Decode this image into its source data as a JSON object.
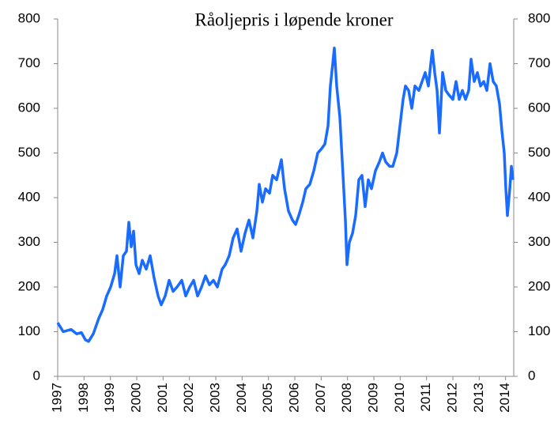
{
  "chart_data": {
    "type": "line",
    "title": "Råoljepris i løpende kroner",
    "x": [
      1997.0,
      1997.21,
      1997.51,
      1997.72,
      1997.9,
      1998.05,
      1998.17,
      1998.35,
      1998.56,
      1998.71,
      1998.86,
      1999.01,
      1999.16,
      1999.25,
      1999.37,
      1999.49,
      1999.61,
      1999.7,
      1999.79,
      1999.88,
      1999.97,
      2000.09,
      2000.21,
      2000.36,
      2000.51,
      2000.66,
      2000.81,
      2000.93,
      2001.08,
      2001.23,
      2001.38,
      2001.53,
      2001.71,
      2001.86,
      2002.01,
      2002.16,
      2002.31,
      2002.46,
      2002.61,
      2002.76,
      2002.91,
      2003.06,
      2003.24,
      2003.36,
      2003.51,
      2003.66,
      2003.81,
      2003.96,
      2004.11,
      2004.26,
      2004.41,
      2004.56,
      2004.65,
      2004.77,
      2004.89,
      2005.04,
      2005.16,
      2005.31,
      2005.49,
      2005.61,
      2005.76,
      2005.91,
      2006.03,
      2006.15,
      2006.3,
      2006.42,
      2006.57,
      2006.72,
      2006.87,
      2007.02,
      2007.14,
      2007.26,
      2007.35,
      2007.44,
      2007.5,
      2007.59,
      2007.71,
      2007.83,
      2007.92,
      2007.98,
      2008.07,
      2008.19,
      2008.31,
      2008.43,
      2008.55,
      2008.67,
      2008.79,
      2008.91,
      2009.06,
      2009.21,
      2009.33,
      2009.45,
      2009.6,
      2009.72,
      2009.87,
      2009.99,
      2010.11,
      2010.2,
      2010.32,
      2010.44,
      2010.56,
      2010.71,
      2010.83,
      2010.95,
      2011.07,
      2011.16,
      2011.22,
      2011.31,
      2011.4,
      2011.49,
      2011.61,
      2011.73,
      2011.85,
      2012.0,
      2012.12,
      2012.24,
      2012.36,
      2012.48,
      2012.6,
      2012.69,
      2012.81,
      2012.93,
      2013.05,
      2013.17,
      2013.29,
      2013.41,
      2013.53,
      2013.65,
      2013.77,
      2013.86,
      2013.95,
      2014.01,
      2014.07,
      2014.16,
      2014.22,
      2014.28
    ],
    "series": [
      {
        "color": "#1a6cff",
        "values": [
          120,
          100,
          105,
          95,
          98,
          82,
          78,
          95,
          130,
          150,
          180,
          200,
          230,
          270,
          200,
          270,
          280,
          345,
          290,
          325,
          250,
          230,
          260,
          240,
          270,
          220,
          180,
          160,
          180,
          215,
          190,
          200,
          215,
          180,
          200,
          215,
          180,
          200,
          225,
          205,
          215,
          200,
          240,
          250,
          270,
          310,
          330,
          280,
          320,
          350,
          310,
          370,
          430,
          390,
          420,
          410,
          450,
          440,
          485,
          420,
          370,
          350,
          340,
          360,
          390,
          420,
          430,
          460,
          500,
          510,
          520,
          560,
          650,
          700,
          735,
          650,
          580,
          450,
          350,
          250,
          300,
          320,
          360,
          440,
          450,
          380,
          440,
          420,
          460,
          480,
          500,
          480,
          470,
          470,
          500,
          560,
          620,
          650,
          640,
          600,
          650,
          640,
          660,
          680,
          650,
          700,
          730,
          680,
          640,
          545,
          680,
          640,
          630,
          620,
          660,
          620,
          640,
          620,
          640,
          710,
          660,
          680,
          650,
          660,
          640,
          700,
          660,
          650,
          610,
          550,
          500,
          420,
          360,
          420,
          470,
          440
        ]
      }
    ],
    "xlim": [
      1997,
      2014.31
    ],
    "xticks": [
      1997,
      1998,
      1999,
      2000,
      2001,
      2002,
      2003,
      2004,
      2005,
      2006,
      2007,
      2008,
      2009,
      2010,
      2011,
      2012,
      2013,
      2014
    ],
    "ylim": [
      0,
      800
    ],
    "yticks": [
      0,
      100,
      200,
      300,
      400,
      500,
      600,
      700,
      800
    ],
    "y2lim": [
      0,
      800
    ],
    "y2ticks": [
      0,
      100,
      200,
      300,
      400,
      500,
      600,
      700,
      800
    ]
  }
}
